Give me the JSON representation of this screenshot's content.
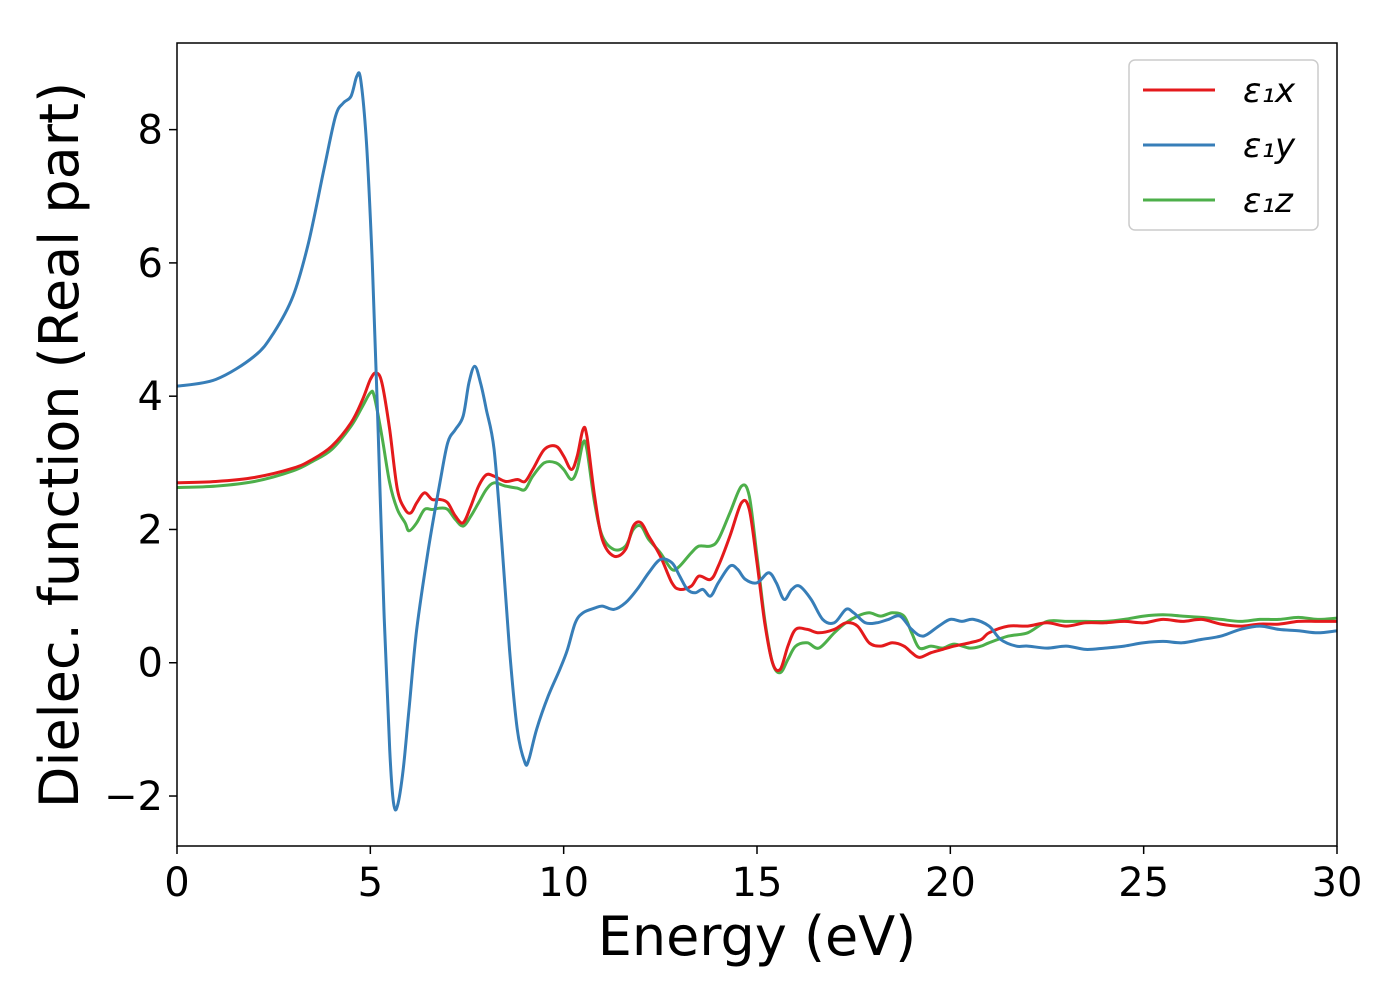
{
  "chart_data": {
    "type": "line",
    "title": "",
    "xlabel": "Energy (eV)",
    "ylabel": "Dielec. function (Real part)",
    "xlim": [
      0,
      30
    ],
    "ylim": [
      -2.75,
      9.3
    ],
    "xticks": [
      0,
      5,
      10,
      15,
      20,
      25,
      30
    ],
    "xtick_labels": [
      "0",
      "5",
      "10",
      "15",
      "20",
      "25",
      "30"
    ],
    "yticks": [
      -2,
      0,
      2,
      4,
      6,
      8
    ],
    "ytick_labels": [
      "−2",
      "0",
      "2",
      "4",
      "6",
      "8"
    ],
    "grid": false,
    "legend_position": "top-right",
    "series": [
      {
        "name": "ε₁x",
        "color": "#e41a1c",
        "points": [
          [
            0,
            2.7
          ],
          [
            1,
            2.72
          ],
          [
            2,
            2.78
          ],
          [
            3,
            2.92
          ],
          [
            3.5,
            3.05
          ],
          [
            4,
            3.25
          ],
          [
            4.5,
            3.6
          ],
          [
            4.8,
            3.95
          ],
          [
            5.0,
            4.25
          ],
          [
            5.15,
            4.35
          ],
          [
            5.3,
            4.2
          ],
          [
            5.5,
            3.5
          ],
          [
            5.7,
            2.6
          ],
          [
            5.9,
            2.3
          ],
          [
            6.05,
            2.25
          ],
          [
            6.2,
            2.4
          ],
          [
            6.4,
            2.55
          ],
          [
            6.6,
            2.45
          ],
          [
            6.8,
            2.45
          ],
          [
            7.0,
            2.4
          ],
          [
            7.2,
            2.2
          ],
          [
            7.4,
            2.1
          ],
          [
            7.6,
            2.35
          ],
          [
            7.8,
            2.65
          ],
          [
            8.0,
            2.82
          ],
          [
            8.2,
            2.8
          ],
          [
            8.5,
            2.72
          ],
          [
            8.8,
            2.75
          ],
          [
            9.0,
            2.72
          ],
          [
            9.2,
            2.9
          ],
          [
            9.5,
            3.2
          ],
          [
            9.8,
            3.25
          ],
          [
            10.0,
            3.1
          ],
          [
            10.2,
            2.9
          ],
          [
            10.35,
            3.1
          ],
          [
            10.5,
            3.5
          ],
          [
            10.6,
            3.4
          ],
          [
            10.8,
            2.5
          ],
          [
            11.0,
            1.85
          ],
          [
            11.3,
            1.6
          ],
          [
            11.6,
            1.7
          ],
          [
            11.8,
            2.05
          ],
          [
            12.0,
            2.1
          ],
          [
            12.2,
            1.9
          ],
          [
            12.5,
            1.6
          ],
          [
            12.8,
            1.2
          ],
          [
            13.0,
            1.1
          ],
          [
            13.3,
            1.15
          ],
          [
            13.5,
            1.3
          ],
          [
            13.8,
            1.25
          ],
          [
            14.0,
            1.45
          ],
          [
            14.3,
            1.9
          ],
          [
            14.6,
            2.4
          ],
          [
            14.8,
            2.3
          ],
          [
            15.0,
            1.5
          ],
          [
            15.2,
            0.6
          ],
          [
            15.4,
            0.0
          ],
          [
            15.6,
            -0.1
          ],
          [
            15.8,
            0.25
          ],
          [
            16.0,
            0.5
          ],
          [
            16.3,
            0.5
          ],
          [
            16.6,
            0.45
          ],
          [
            17.0,
            0.5
          ],
          [
            17.3,
            0.6
          ],
          [
            17.6,
            0.55
          ],
          [
            17.9,
            0.3
          ],
          [
            18.2,
            0.25
          ],
          [
            18.5,
            0.3
          ],
          [
            18.8,
            0.25
          ],
          [
            19.0,
            0.15
          ],
          [
            19.2,
            0.08
          ],
          [
            19.5,
            0.15
          ],
          [
            19.8,
            0.2
          ],
          [
            20.1,
            0.25
          ],
          [
            20.5,
            0.3
          ],
          [
            20.8,
            0.35
          ],
          [
            21.0,
            0.45
          ],
          [
            21.5,
            0.55
          ],
          [
            22.0,
            0.55
          ],
          [
            22.5,
            0.6
          ],
          [
            23.0,
            0.55
          ],
          [
            23.5,
            0.6
          ],
          [
            24.0,
            0.6
          ],
          [
            24.5,
            0.62
          ],
          [
            25.0,
            0.6
          ],
          [
            25.5,
            0.65
          ],
          [
            26.0,
            0.62
          ],
          [
            26.5,
            0.65
          ],
          [
            27.0,
            0.58
          ],
          [
            27.5,
            0.55
          ],
          [
            28.0,
            0.58
          ],
          [
            28.5,
            0.58
          ],
          [
            29.0,
            0.62
          ],
          [
            29.5,
            0.62
          ],
          [
            30.0,
            0.62
          ]
        ]
      },
      {
        "name": "ε₁y",
        "color": "#377eb8",
        "points": [
          [
            0,
            4.15
          ],
          [
            1,
            4.25
          ],
          [
            2,
            4.6
          ],
          [
            2.5,
            4.95
          ],
          [
            3.0,
            5.5
          ],
          [
            3.4,
            6.3
          ],
          [
            3.8,
            7.4
          ],
          [
            4.1,
            8.2
          ],
          [
            4.3,
            8.4
          ],
          [
            4.5,
            8.5
          ],
          [
            4.65,
            8.8
          ],
          [
            4.75,
            8.75
          ],
          [
            4.9,
            7.8
          ],
          [
            5.05,
            6.0
          ],
          [
            5.2,
            3.5
          ],
          [
            5.35,
            0.8
          ],
          [
            5.5,
            -1.3
          ],
          [
            5.6,
            -2.1
          ],
          [
            5.7,
            -2.15
          ],
          [
            5.85,
            -1.6
          ],
          [
            6.0,
            -0.7
          ],
          [
            6.2,
            0.5
          ],
          [
            6.5,
            1.7
          ],
          [
            6.8,
            2.7
          ],
          [
            7.0,
            3.3
          ],
          [
            7.2,
            3.5
          ],
          [
            7.4,
            3.7
          ],
          [
            7.55,
            4.2
          ],
          [
            7.7,
            4.45
          ],
          [
            7.85,
            4.2
          ],
          [
            8.0,
            3.8
          ],
          [
            8.2,
            3.2
          ],
          [
            8.4,
            1.8
          ],
          [
            8.6,
            0.2
          ],
          [
            8.8,
            -1.0
          ],
          [
            9.0,
            -1.5
          ],
          [
            9.1,
            -1.45
          ],
          [
            9.3,
            -1.0
          ],
          [
            9.6,
            -0.5
          ],
          [
            9.9,
            -0.1
          ],
          [
            10.1,
            0.2
          ],
          [
            10.3,
            0.6
          ],
          [
            10.5,
            0.75
          ],
          [
            10.8,
            0.82
          ],
          [
            11.0,
            0.85
          ],
          [
            11.3,
            0.8
          ],
          [
            11.6,
            0.9
          ],
          [
            11.9,
            1.1
          ],
          [
            12.2,
            1.35
          ],
          [
            12.5,
            1.55
          ],
          [
            12.8,
            1.5
          ],
          [
            13.0,
            1.3
          ],
          [
            13.2,
            1.1
          ],
          [
            13.4,
            1.05
          ],
          [
            13.6,
            1.1
          ],
          [
            13.8,
            1.0
          ],
          [
            14.0,
            1.2
          ],
          [
            14.3,
            1.45
          ],
          [
            14.5,
            1.4
          ],
          [
            14.7,
            1.25
          ],
          [
            15.0,
            1.2
          ],
          [
            15.3,
            1.35
          ],
          [
            15.5,
            1.2
          ],
          [
            15.7,
            0.95
          ],
          [
            15.9,
            1.1
          ],
          [
            16.1,
            1.15
          ],
          [
            16.4,
            0.95
          ],
          [
            16.7,
            0.65
          ],
          [
            17.0,
            0.6
          ],
          [
            17.3,
            0.8
          ],
          [
            17.5,
            0.75
          ],
          [
            17.8,
            0.6
          ],
          [
            18.1,
            0.6
          ],
          [
            18.4,
            0.65
          ],
          [
            18.7,
            0.7
          ],
          [
            19.0,
            0.5
          ],
          [
            19.3,
            0.4
          ],
          [
            19.7,
            0.55
          ],
          [
            20.0,
            0.65
          ],
          [
            20.3,
            0.62
          ],
          [
            20.6,
            0.65
          ],
          [
            21.0,
            0.55
          ],
          [
            21.3,
            0.35
          ],
          [
            21.7,
            0.25
          ],
          [
            22.0,
            0.25
          ],
          [
            22.5,
            0.22
          ],
          [
            23.0,
            0.25
          ],
          [
            23.5,
            0.2
          ],
          [
            24.0,
            0.22
          ],
          [
            24.5,
            0.25
          ],
          [
            25.0,
            0.3
          ],
          [
            25.5,
            0.32
          ],
          [
            26.0,
            0.3
          ],
          [
            26.5,
            0.35
          ],
          [
            27.0,
            0.4
          ],
          [
            27.5,
            0.5
          ],
          [
            28.0,
            0.55
          ],
          [
            28.5,
            0.5
          ],
          [
            29.0,
            0.48
          ],
          [
            29.5,
            0.45
          ],
          [
            30.0,
            0.48
          ]
        ]
      },
      {
        "name": "ε₁z",
        "color": "#4daf4a",
        "points": [
          [
            0,
            2.63
          ],
          [
            1,
            2.65
          ],
          [
            2,
            2.72
          ],
          [
            3,
            2.88
          ],
          [
            3.5,
            3.02
          ],
          [
            4,
            3.2
          ],
          [
            4.5,
            3.55
          ],
          [
            4.8,
            3.85
          ],
          [
            5.0,
            4.05
          ],
          [
            5.1,
            4.0
          ],
          [
            5.3,
            3.4
          ],
          [
            5.5,
            2.7
          ],
          [
            5.7,
            2.3
          ],
          [
            5.9,
            2.1
          ],
          [
            6.0,
            1.98
          ],
          [
            6.2,
            2.1
          ],
          [
            6.4,
            2.3
          ],
          [
            6.6,
            2.3
          ],
          [
            6.8,
            2.32
          ],
          [
            7.0,
            2.3
          ],
          [
            7.2,
            2.15
          ],
          [
            7.4,
            2.05
          ],
          [
            7.6,
            2.2
          ],
          [
            7.8,
            2.4
          ],
          [
            8.0,
            2.6
          ],
          [
            8.2,
            2.7
          ],
          [
            8.5,
            2.65
          ],
          [
            8.8,
            2.62
          ],
          [
            9.0,
            2.6
          ],
          [
            9.2,
            2.8
          ],
          [
            9.5,
            3.0
          ],
          [
            9.8,
            3.0
          ],
          [
            10.0,
            2.9
          ],
          [
            10.2,
            2.75
          ],
          [
            10.35,
            2.9
          ],
          [
            10.5,
            3.3
          ],
          [
            10.6,
            3.2
          ],
          [
            10.8,
            2.4
          ],
          [
            11.0,
            1.9
          ],
          [
            11.3,
            1.7
          ],
          [
            11.6,
            1.75
          ],
          [
            11.8,
            2.0
          ],
          [
            12.0,
            2.05
          ],
          [
            12.2,
            1.85
          ],
          [
            12.5,
            1.65
          ],
          [
            12.8,
            1.4
          ],
          [
            13.0,
            1.45
          ],
          [
            13.3,
            1.65
          ],
          [
            13.5,
            1.75
          ],
          [
            13.8,
            1.75
          ],
          [
            14.0,
            1.85
          ],
          [
            14.3,
            2.25
          ],
          [
            14.6,
            2.65
          ],
          [
            14.8,
            2.5
          ],
          [
            15.0,
            1.6
          ],
          [
            15.2,
            0.65
          ],
          [
            15.4,
            0.0
          ],
          [
            15.6,
            -0.15
          ],
          [
            15.8,
            0.05
          ],
          [
            16.0,
            0.25
          ],
          [
            16.3,
            0.3
          ],
          [
            16.6,
            0.22
          ],
          [
            17.0,
            0.45
          ],
          [
            17.3,
            0.6
          ],
          [
            17.6,
            0.7
          ],
          [
            17.9,
            0.75
          ],
          [
            18.2,
            0.7
          ],
          [
            18.5,
            0.75
          ],
          [
            18.8,
            0.7
          ],
          [
            19.0,
            0.45
          ],
          [
            19.2,
            0.22
          ],
          [
            19.5,
            0.25
          ],
          [
            19.8,
            0.22
          ],
          [
            20.1,
            0.28
          ],
          [
            20.5,
            0.22
          ],
          [
            20.8,
            0.25
          ],
          [
            21.0,
            0.3
          ],
          [
            21.5,
            0.4
          ],
          [
            22.0,
            0.45
          ],
          [
            22.5,
            0.62
          ],
          [
            23.0,
            0.62
          ],
          [
            23.5,
            0.62
          ],
          [
            24.0,
            0.62
          ],
          [
            24.5,
            0.65
          ],
          [
            25.0,
            0.7
          ],
          [
            25.5,
            0.72
          ],
          [
            26.0,
            0.7
          ],
          [
            26.5,
            0.68
          ],
          [
            27.0,
            0.65
          ],
          [
            27.5,
            0.62
          ],
          [
            28.0,
            0.65
          ],
          [
            28.5,
            0.65
          ],
          [
            29.0,
            0.68
          ],
          [
            29.5,
            0.65
          ],
          [
            30.0,
            0.67
          ]
        ]
      }
    ]
  }
}
